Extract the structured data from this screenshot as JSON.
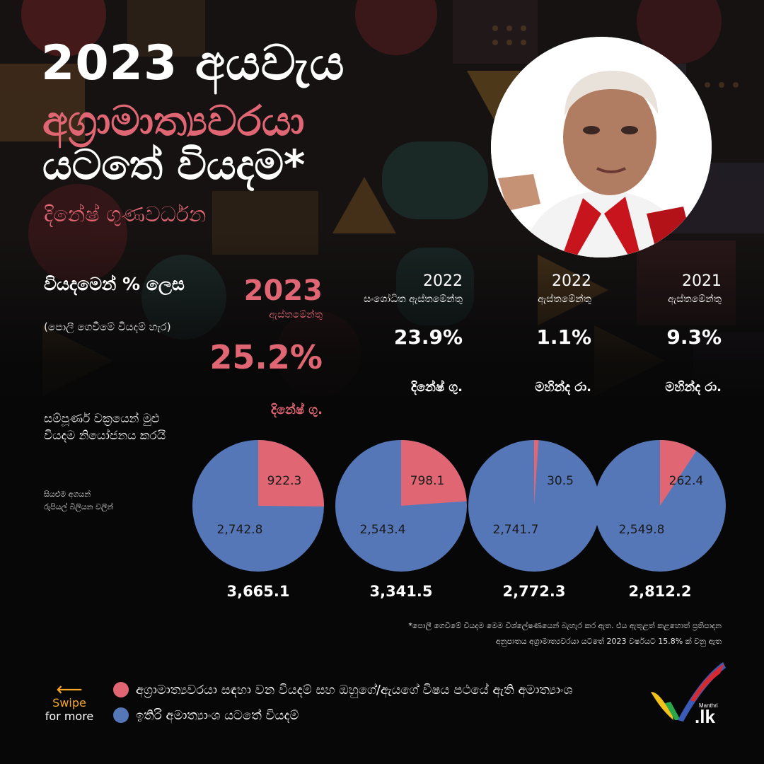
{
  "header": {
    "title_line1": "2023 අයවැය",
    "title_line2": "අග්‍රාමාත්‍යවරයා",
    "title_line3": "යටතේ වියදම*",
    "subtitle": "දිනේෂ් ගුණවර්ධන"
  },
  "row_label": {
    "title": "වියදමෙන් % ලෙස",
    "note": "(පොලී ගෙවීමේ වියදම් හැර)"
  },
  "columns": [
    {
      "year": "2023",
      "label": "ඇස්තමේන්තු",
      "percent": "25.2%",
      "leader": "දිනේෂ් ගු."
    },
    {
      "year": "2022",
      "label": "සංශෝධිත ඇස්තමේන්තු",
      "percent": "23.9%",
      "leader": "දිනේෂ් ගු."
    },
    {
      "year": "2022",
      "label": "ඇස්තමේන්තු",
      "percent": "1.1%",
      "leader": "මහින්ද රා."
    },
    {
      "year": "2021",
      "label": "ඇස්තමේන්තු",
      "percent": "9.3%",
      "leader": "මහින්ද රා."
    }
  ],
  "pie_section": {
    "description": "සම්පූර්ණ වක්‍රයෙන් මුළු වියදම නියෝජනය කරයි",
    "unit_note": "සියළුම අගයන් රුපියල් බිලියන වලින්"
  },
  "chart_data": [
    {
      "type": "pie",
      "labels": [
        "922.3",
        "2,742.8"
      ],
      "values": [
        922.3,
        2742.8
      ],
      "total": "3,665.1"
    },
    {
      "type": "pie",
      "labels": [
        "798.1",
        "2,543.4"
      ],
      "values": [
        798.1,
        2543.4
      ],
      "total": "3,341.5"
    },
    {
      "type": "pie",
      "labels": [
        "30.5",
        "2,741.7"
      ],
      "values": [
        30.5,
        2741.7
      ],
      "total": "2,772.3"
    },
    {
      "type": "pie",
      "labels": [
        "262.4",
        "2,549.8"
      ],
      "values": [
        262.4,
        2549.8
      ],
      "total": "2,812.2"
    }
  ],
  "footnote": {
    "line1": "*පොලී ගෙවීමේ වියදම මෙම විශ්ලේෂණයෙන් බැහැර කර ඇත. එය ඇතුළත් කළහොත් ප්‍රතිපාදන",
    "line2": "අනුපාතය අග්‍රාමාත්‍යවරයා යටතේ 2023 වර්ෂයට 15.8% ක් වනු ඇත"
  },
  "swipe": {
    "arrow": "⟵",
    "line1": "Swipe",
    "line2": "for more"
  },
  "legend": [
    {
      "label": "අග්‍රාමාත්‍යවරයා සඳහා වන වියදම් සහ ඔහුගේ/ඇයගේ විෂය පථයේ ඇති අමාත්‍යාංශ",
      "color": "#e06674"
    },
    {
      "label": "ඉතිරි අමාත්‍යාංශ යටතේ වියදම්",
      "color": "#5577b8"
    }
  ],
  "logo": {
    "top_text": "Manthri",
    "main_text": ".lk"
  },
  "colors": {
    "accent": "#e06674",
    "series_blue": "#5577b8",
    "swipe": "#f5a623"
  }
}
